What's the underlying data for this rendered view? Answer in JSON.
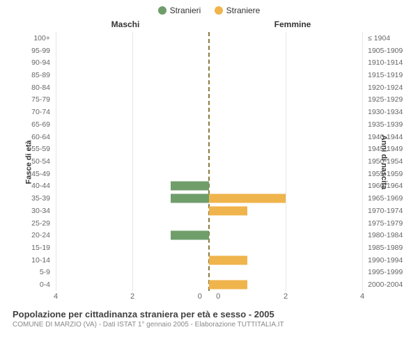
{
  "legend": {
    "male": {
      "label": "Stranieri",
      "color": "#6f9e6b"
    },
    "female": {
      "label": "Straniere",
      "color": "#f0b44c"
    }
  },
  "headers": {
    "left": "Maschi",
    "right": "Femmine"
  },
  "axes": {
    "left_label": "Fasce di età",
    "right_label": "Anni di nascita",
    "x_max": 4,
    "x_ticks": [
      4,
      2,
      0,
      0,
      2,
      4
    ],
    "grid_color": "#e6e6e6",
    "center_line_color": "#8a7a3c"
  },
  "chart": {
    "bar_color_m": "#6f9e6b",
    "bar_color_f": "#f0b44c",
    "rows": [
      {
        "age": "100+",
        "birth": "≤ 1904",
        "m": 0,
        "f": 0
      },
      {
        "age": "95-99",
        "birth": "1905-1909",
        "m": 0,
        "f": 0
      },
      {
        "age": "90-94",
        "birth": "1910-1914",
        "m": 0,
        "f": 0
      },
      {
        "age": "85-89",
        "birth": "1915-1919",
        "m": 0,
        "f": 0
      },
      {
        "age": "80-84",
        "birth": "1920-1924",
        "m": 0,
        "f": 0
      },
      {
        "age": "75-79",
        "birth": "1925-1929",
        "m": 0,
        "f": 0
      },
      {
        "age": "70-74",
        "birth": "1930-1934",
        "m": 0,
        "f": 0
      },
      {
        "age": "65-69",
        "birth": "1935-1939",
        "m": 0,
        "f": 0
      },
      {
        "age": "60-64",
        "birth": "1940-1944",
        "m": 0,
        "f": 0
      },
      {
        "age": "55-59",
        "birth": "1945-1949",
        "m": 0,
        "f": 0
      },
      {
        "age": "50-54",
        "birth": "1950-1954",
        "m": 0,
        "f": 0
      },
      {
        "age": "45-49",
        "birth": "1955-1959",
        "m": 0,
        "f": 0
      },
      {
        "age": "40-44",
        "birth": "1960-1964",
        "m": 1,
        "f": 0
      },
      {
        "age": "35-39",
        "birth": "1965-1969",
        "m": 1,
        "f": 2
      },
      {
        "age": "30-34",
        "birth": "1970-1974",
        "m": 0,
        "f": 1
      },
      {
        "age": "25-29",
        "birth": "1975-1979",
        "m": 0,
        "f": 0
      },
      {
        "age": "20-24",
        "birth": "1980-1984",
        "m": 1,
        "f": 0
      },
      {
        "age": "15-19",
        "birth": "1985-1989",
        "m": 0,
        "f": 0
      },
      {
        "age": "10-14",
        "birth": "1990-1994",
        "m": 0,
        "f": 1
      },
      {
        "age": "5-9",
        "birth": "1995-1999",
        "m": 0,
        "f": 0
      },
      {
        "age": "0-4",
        "birth": "2000-2004",
        "m": 0,
        "f": 1
      }
    ]
  },
  "title": "Popolazione per cittadinanza straniera per età e sesso - 2005",
  "subtitle": "COMUNE DI MARZIO (VA) - Dati ISTAT 1° gennaio 2005 - Elaborazione TUTTITALIA.IT"
}
